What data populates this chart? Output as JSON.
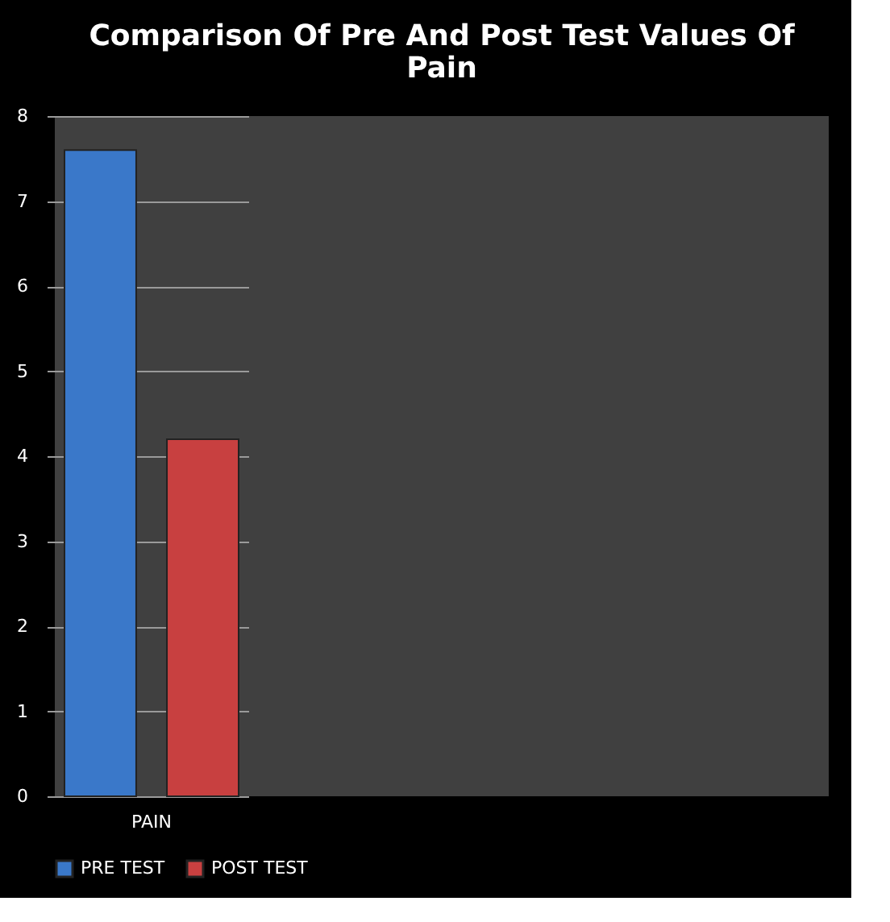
{
  "chart_data": {
    "type": "bar",
    "title": "Comparison Of Pre And Post Test Values Of Pain",
    "categories": [
      "PAIN"
    ],
    "series": [
      {
        "name": "PRE TEST",
        "color": "#3a78c9",
        "values": [
          7.6
        ]
      },
      {
        "name": "POST TEST",
        "color": "#c84040",
        "values": [
          4.2
        ]
      }
    ],
    "ylim": [
      0,
      8
    ],
    "yticks": [
      0,
      1,
      2,
      3,
      4,
      5,
      6,
      7,
      8
    ],
    "grid": "y",
    "legend": "bottom"
  }
}
